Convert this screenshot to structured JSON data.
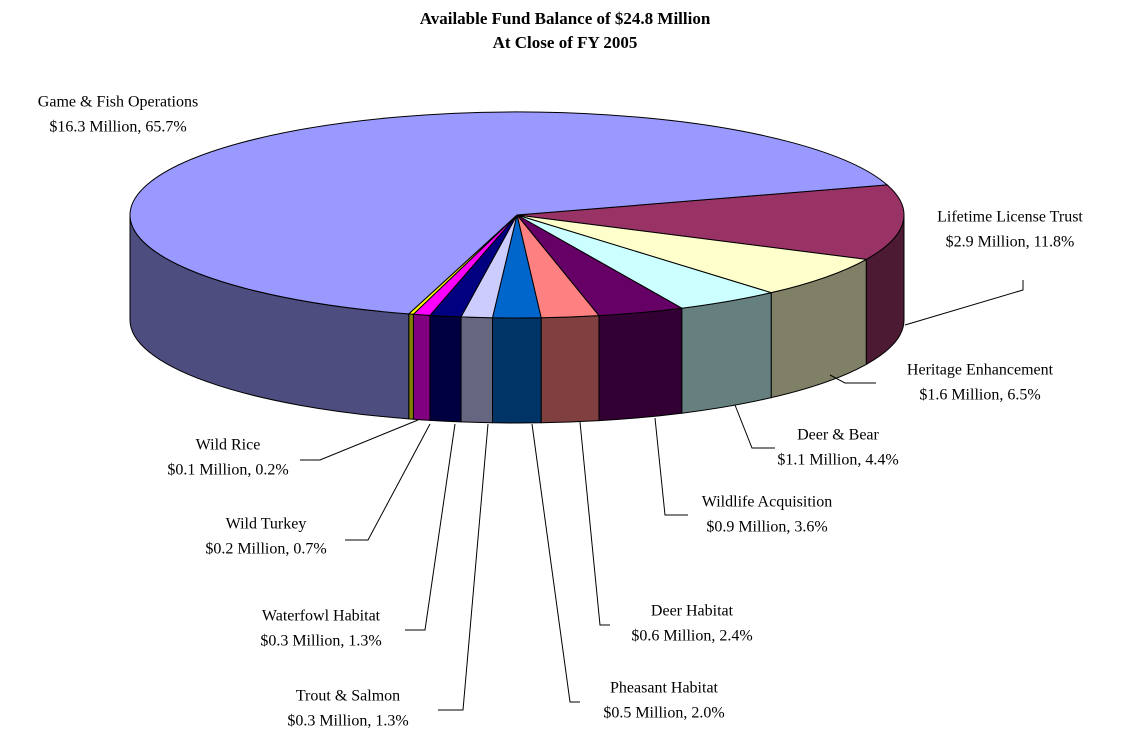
{
  "chart_data": {
    "type": "pie3d",
    "title": "Available Fund Balance of $24.8 Million",
    "subtitle": "At Close of FY 2005",
    "categories": [
      "Lifetime License Trust",
      "Heritage Enhancement",
      "Deer & Bear",
      "Wildlife Acquisition",
      "Deer Habitat",
      "Pheasant Habitat",
      "Trout & Salmon",
      "Waterfowl Habitat",
      "Wild Turkey",
      "Wild Rice",
      "Game & Fish Operations"
    ],
    "values": [
      11.8,
      6.5,
      4.4,
      3.6,
      2.4,
      2.0,
      1.3,
      1.3,
      0.7,
      0.2,
      65.7
    ],
    "value_labels": [
      "$2.9 Million, 11.8%",
      "$1.6 Million, 6.5%",
      "$1.1 Million, 4.4%",
      "$0.9 Million, 3.6%",
      "$0.6 Million, 2.4%",
      "$0.5 Million, 2.0%",
      "$0.3 Million, 1.3%",
      "$0.3 Million, 1.3%",
      "$0.2 Million, 0.7%",
      "$0.1 Million, 0.2%",
      "$16.3 Million, 65.7%"
    ],
    "colors": [
      "#993366",
      "#ffffcc",
      "#ccffff",
      "#660066",
      "#ff8080",
      "#0066cc",
      "#ccccff",
      "#000080",
      "#ff00ff",
      "#ffff00",
      "#9999ff"
    ]
  }
}
